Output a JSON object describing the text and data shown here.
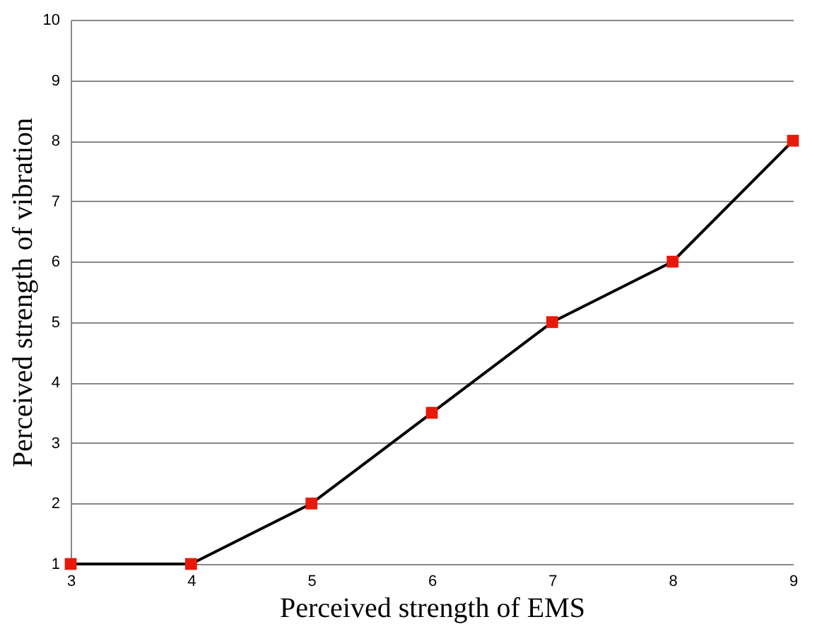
{
  "chart_data": {
    "type": "line",
    "xlabel": "Perceived strength of EMS",
    "ylabel": "Perceived strength of vibration",
    "x": [
      3,
      4,
      5,
      6,
      7,
      8,
      9
    ],
    "series": [
      {
        "color": "#000000",
        "marker": "none",
        "values": [
          1,
          1,
          2,
          3.5,
          5,
          6,
          8
        ]
      },
      {
        "type": "scatter",
        "color": "#e8190a",
        "marker": "square",
        "values": [
          1,
          1,
          2,
          3.5,
          5,
          6,
          8
        ]
      }
    ],
    "line_style": "solid",
    "xlim": [
      3,
      9
    ],
    "xticks": [
      3,
      4,
      5,
      6,
      7,
      8,
      9
    ],
    "ylim": [
      1,
      10
    ],
    "yticks": [
      1,
      2,
      3,
      4,
      5,
      6,
      7,
      8,
      9,
      10
    ],
    "grid": "y"
  }
}
